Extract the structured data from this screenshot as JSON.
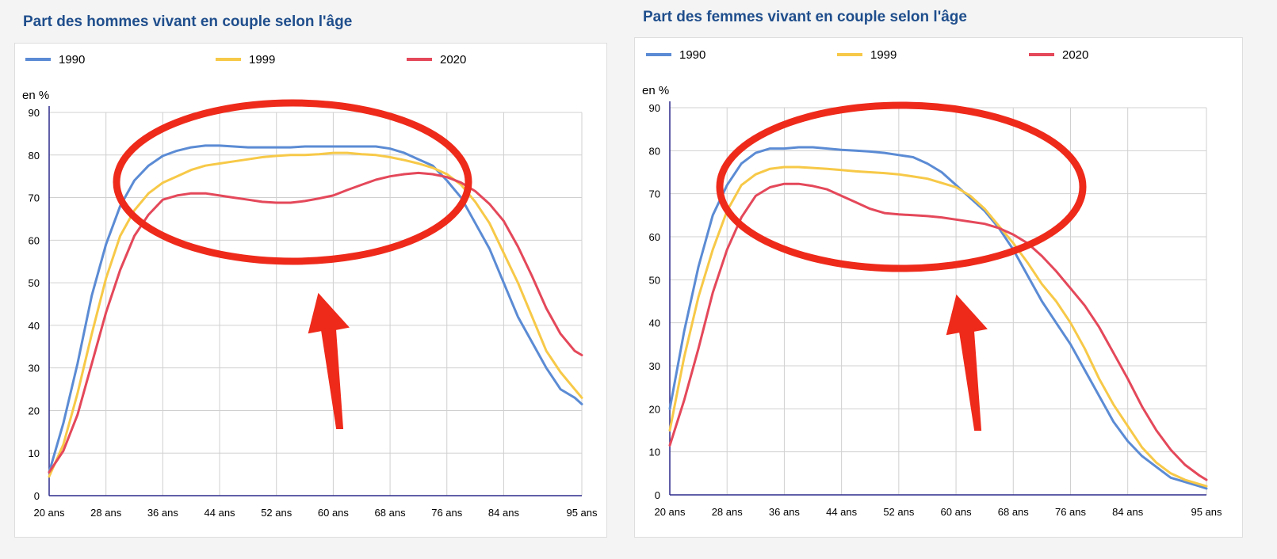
{
  "chart_data": [
    {
      "type": "line",
      "title": "Part des hommes vivant en couple selon l'âge",
      "ylabel": "en %",
      "xlabel": "",
      "ylim": [
        0,
        90
      ],
      "xlim": [
        20,
        95
      ],
      "x_tick_values": [
        20,
        28,
        36,
        44,
        52,
        60,
        68,
        76,
        84,
        95
      ],
      "x_tick_labels": [
        "20 ans",
        "28 ans",
        "36 ans",
        "44 ans",
        "52 ans",
        "60 ans",
        "68 ans",
        "76 ans",
        "84 ans",
        "95 ans"
      ],
      "y_ticks": [
        0,
        10,
        20,
        30,
        40,
        50,
        60,
        70,
        80,
        90
      ],
      "grid": true,
      "legend_position": "top",
      "series": [
        {
          "name": "1990",
          "color": "#5b8bd4",
          "x": [
            20,
            22,
            24,
            26,
            28,
            30,
            32,
            34,
            36,
            38,
            40,
            42,
            44,
            46,
            48,
            50,
            52,
            54,
            56,
            58,
            60,
            62,
            64,
            66,
            68,
            70,
            72,
            74,
            76,
            78,
            80,
            82,
            84,
            86,
            88,
            90,
            92,
            94,
            95
          ],
          "values": [
            5.5,
            17,
            31,
            47,
            59,
            68,
            74,
            77.5,
            79.8,
            81,
            81.8,
            82.2,
            82.2,
            82,
            81.8,
            81.8,
            81.8,
            81.8,
            82,
            82,
            82,
            82,
            82,
            82,
            81.5,
            80.5,
            79,
            77.5,
            74,
            70,
            64,
            58,
            50,
            42,
            36,
            30,
            25,
            23,
            21.5
          ]
        },
        {
          "name": "1999",
          "color": "#f7c948",
          "x": [
            20,
            22,
            24,
            26,
            28,
            30,
            32,
            34,
            36,
            38,
            40,
            42,
            44,
            46,
            48,
            50,
            52,
            54,
            56,
            58,
            60,
            62,
            64,
            66,
            68,
            70,
            72,
            74,
            76,
            78,
            80,
            82,
            84,
            86,
            88,
            90,
            92,
            94,
            95
          ],
          "values": [
            4.5,
            12,
            24,
            38,
            51,
            61,
            67,
            71,
            73.5,
            75,
            76.5,
            77.5,
            78,
            78.5,
            79,
            79.5,
            79.8,
            80,
            80,
            80.2,
            80.5,
            80.5,
            80.2,
            80,
            79.5,
            78.8,
            78,
            77,
            75.5,
            73,
            69,
            64,
            57,
            50,
            42,
            34,
            29,
            25,
            23
          ]
        },
        {
          "name": "2020",
          "color": "#e4485a",
          "x": [
            20,
            22,
            24,
            26,
            28,
            30,
            32,
            34,
            36,
            38,
            40,
            42,
            44,
            46,
            48,
            50,
            52,
            54,
            56,
            58,
            60,
            62,
            64,
            66,
            68,
            70,
            72,
            74,
            76,
            78,
            80,
            82,
            84,
            86,
            88,
            90,
            92,
            94,
            95
          ],
          "values": [
            5.5,
            10.5,
            19,
            31,
            43,
            53,
            61,
            66,
            69.5,
            70.5,
            71,
            71,
            70.5,
            70,
            69.5,
            69,
            68.8,
            68.8,
            69.2,
            69.8,
            70.5,
            71.8,
            73,
            74.2,
            75,
            75.5,
            75.8,
            75.5,
            74.8,
            73.5,
            71.5,
            68.5,
            64.5,
            58.5,
            51.5,
            44,
            38,
            34,
            33
          ]
        }
      ]
    },
    {
      "type": "line",
      "title": "Part des femmes vivant en couple selon l'âge",
      "ylabel": "en %",
      "xlabel": "",
      "ylim": [
        0,
        90
      ],
      "xlim": [
        20,
        95
      ],
      "x_tick_values": [
        20,
        28,
        36,
        44,
        52,
        60,
        68,
        76,
        84,
        95
      ],
      "x_tick_labels": [
        "20 ans",
        "28 ans",
        "36 ans",
        "44 ans",
        "52 ans",
        "60 ans",
        "68 ans",
        "76 ans",
        "84 ans",
        "95 ans"
      ],
      "y_ticks": [
        0,
        10,
        20,
        30,
        40,
        50,
        60,
        70,
        80,
        90
      ],
      "grid": true,
      "legend_position": "top",
      "series": [
        {
          "name": "1990",
          "color": "#5b8bd4",
          "x": [
            20,
            22,
            24,
            26,
            28,
            30,
            32,
            34,
            36,
            38,
            40,
            42,
            44,
            46,
            48,
            50,
            52,
            54,
            56,
            58,
            60,
            62,
            64,
            66,
            68,
            70,
            72,
            74,
            76,
            78,
            80,
            82,
            84,
            86,
            88,
            90,
            92,
            94,
            95
          ],
          "values": [
            20,
            38,
            53,
            65,
            72,
            77,
            79.5,
            80.5,
            80.5,
            80.8,
            80.8,
            80.5,
            80.2,
            80,
            79.8,
            79.5,
            79,
            78.5,
            77,
            75,
            72,
            69,
            66,
            62,
            57,
            51,
            45,
            40,
            35,
            29,
            23,
            17,
            12.5,
            9,
            6.5,
            4,
            3,
            2,
            1.5
          ]
        },
        {
          "name": "1999",
          "color": "#f7c948",
          "x": [
            20,
            22,
            24,
            26,
            28,
            30,
            32,
            34,
            36,
            38,
            40,
            42,
            44,
            46,
            48,
            50,
            52,
            54,
            56,
            58,
            60,
            62,
            64,
            66,
            68,
            70,
            72,
            74,
            76,
            78,
            80,
            82,
            84,
            86,
            88,
            90,
            92,
            94,
            95
          ],
          "values": [
            15,
            32,
            46,
            57,
            66,
            72,
            74.5,
            75.8,
            76.2,
            76.2,
            76,
            75.8,
            75.5,
            75.2,
            75,
            74.8,
            74.5,
            74,
            73.5,
            72.5,
            71.5,
            69.5,
            66.5,
            62.5,
            58.5,
            54,
            49,
            45,
            40,
            34,
            27,
            21,
            16,
            11,
            7.5,
            5,
            3.5,
            2.5,
            2
          ]
        },
        {
          "name": "2020",
          "color": "#e4485a",
          "x": [
            20,
            22,
            24,
            26,
            28,
            30,
            32,
            34,
            36,
            38,
            40,
            42,
            44,
            46,
            48,
            50,
            52,
            54,
            56,
            58,
            60,
            62,
            64,
            66,
            68,
            70,
            72,
            74,
            76,
            78,
            80,
            82,
            84,
            86,
            88,
            90,
            92,
            94,
            95
          ],
          "values": [
            11.5,
            22,
            34,
            47,
            57,
            64.5,
            69.5,
            71.5,
            72.3,
            72.3,
            71.8,
            71,
            69.5,
            68,
            66.5,
            65.5,
            65.2,
            65,
            64.8,
            64.5,
            64,
            63.5,
            63,
            62,
            60.5,
            58.5,
            55.5,
            52,
            48,
            44,
            39,
            33,
            27,
            20.5,
            15,
            10.5,
            7,
            4.5,
            3.5
          ]
        }
      ]
    }
  ]
}
